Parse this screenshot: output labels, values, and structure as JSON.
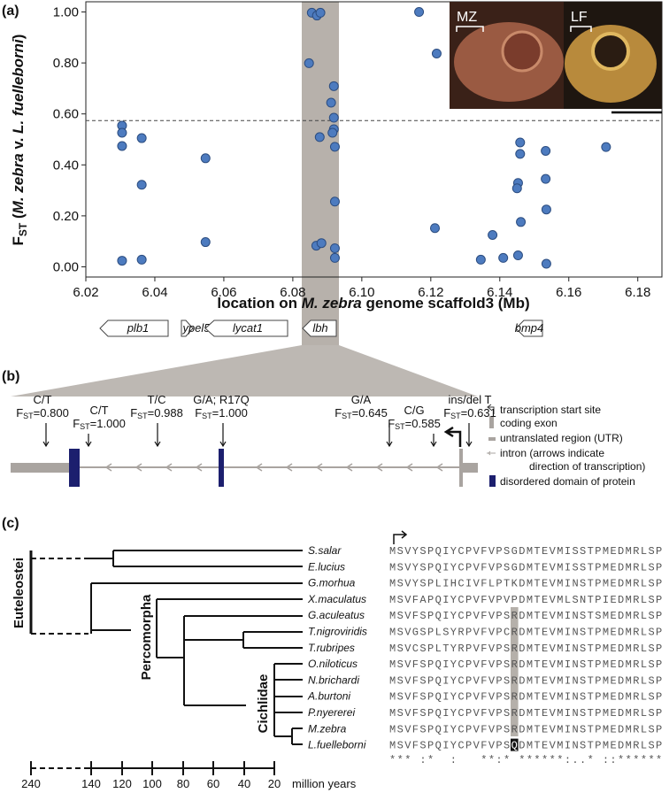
{
  "panel_labels": [
    "(a)",
    "(b)",
    "(c)"
  ],
  "chart_data": {
    "type": "scatter",
    "x": [
      6.0305,
      6.0305,
      6.0305,
      6.0305,
      6.0362,
      6.0362,
      6.0362,
      6.0547,
      6.0547,
      6.0855,
      6.087,
      6.088,
      6.0847,
      6.0911,
      6.0919,
      6.0919,
      6.0919,
      6.0915,
      6.0922,
      6.0878,
      6.0922,
      6.0868,
      6.0883,
      6.0922,
      6.0922,
      6.1166,
      6.1217,
      6.1212,
      6.1345,
      6.1379,
      6.141,
      6.1459,
      6.1459,
      6.1453,
      6.145,
      6.1461,
      6.1453,
      6.1533,
      6.1533,
      6.1535,
      6.1535,
      6.1708
    ],
    "y": [
      0.554,
      0.526,
      0.474,
      0.024,
      0.505,
      0.322,
      0.028,
      0.426,
      0.097,
      0.997,
      0.986,
      0.997,
      0.799,
      0.644,
      0.709,
      0.585,
      0.54,
      0.526,
      0.471,
      0.509,
      0.256,
      0.083,
      0.093,
      0.073,
      0.035,
      1.0,
      0.837,
      0.152,
      0.028,
      0.125,
      0.035,
      0.488,
      0.443,
      0.329,
      0.308,
      0.176,
      0.045,
      0.455,
      0.345,
      0.225,
      0.012,
      0.47
    ],
    "color": "#4d7bbf",
    "xlim": [
      6.02,
      6.187
    ],
    "ylim": [
      -0.04,
      1.04
    ],
    "xticks": [
      6.02,
      6.04,
      6.06,
      6.08,
      {
        "value": 6.1,
        "label": "6.10"
      },
      6.12,
      6.14,
      6.16,
      6.18
    ],
    "yticks": [
      {
        "value": 0,
        "label": "0.00"
      },
      {
        "value": 0.2,
        "label": "0.20"
      },
      {
        "value": 0.4,
        "label": "0.40"
      },
      {
        "value": 0.6,
        "label": "0.60"
      },
      {
        "value": 0.8,
        "label": "0.80"
      },
      {
        "value": 1,
        "label": "1.00"
      }
    ],
    "reference_line": 0.574,
    "x_label": [
      "location on ",
      "M. zebra",
      " genome scaffold3 (Mb)"
    ],
    "y_label": [
      "F",
      "ST",
      " (",
      "M. zebra",
      " v. ",
      "L. fuelleborni",
      ")"
    ]
  },
  "panel_a": {
    "genes": [
      "plb1",
      "ypel5",
      "lycat1",
      "lbh",
      "bmp4"
    ],
    "photo_labels": [
      "MZ",
      "LF"
    ]
  },
  "panel_b": {
    "fst_symbol": {
      "main": "F",
      "sub": "ST"
    },
    "variants": [
      {
        "change": "C/T",
        "fst": "=0.800"
      },
      {
        "change": "C/T",
        "fst": "=1.000"
      },
      {
        "change": "T/C",
        "fst": "=0.988"
      },
      {
        "change": "G/A; R17Q",
        "fst": "=1.000"
      },
      {
        "change": "G/A",
        "fst": "=0.645"
      },
      {
        "change": "C/G",
        "fst": "=0.585"
      },
      {
        "change": "ins/del T",
        "fst": "=0.631"
      }
    ],
    "legend": [
      "transcription start site",
      "coding exon",
      "untranslated region (UTR)",
      "intron (arrows indicate",
      "direction of transcription)",
      "disordered domain of protein"
    ]
  },
  "panel_c": {
    "clades": [
      "Euteleostei",
      "Percomorpha",
      "Cichlidae"
    ],
    "rows": [
      {
        "species": "S.salar",
        "pre": "MSVYSPQIYCPVFVPS",
        "site": "G",
        "post": "DMTEVMISSTPMEDMRLSP"
      },
      {
        "species": "E.lucius",
        "pre": "MSVYSPQIYCPVFVPS",
        "site": "G",
        "post": "DMTEVMISSTPMEDMRLSP"
      },
      {
        "species": "G.morhua",
        "pre": "MSVYSPLIHCIVFLPT",
        "site": "K",
        "post": "DMTEVMINSTPMEDMRLSP"
      },
      {
        "species": "X.maculatus",
        "pre": "MSVFAPQIYCPVFVPV",
        "site": "P",
        "post": "DMTEVMLSNTPIEDMRLSP"
      },
      {
        "species": "G.aculeatus",
        "pre": "MSVFSPQIYCPVFVPS",
        "site": "R",
        "post": "DMTEVMINSTSMEDMRLSP"
      },
      {
        "species": "T.nigroviridis",
        "pre": "MSVGSPLSYRPVFVPC",
        "site": "R",
        "post": "DMTEVMINSTPMEDMRLSP"
      },
      {
        "species": "T.rubripes",
        "pre": "MSVCSPLTYRPVFVPS",
        "site": "R",
        "post": "DMTEVMINSTPMEDMRLSP"
      },
      {
        "species": "O.niloticus",
        "pre": "MSVFSPQIYCPVFVPS",
        "site": "R",
        "post": "DMTEVMINSTPMEDMRLSP"
      },
      {
        "species": "N.brichardi",
        "pre": "MSVFSPQIYCPVFVPS",
        "site": "R",
        "post": "DMTEVMINSTPMEDMRLSP"
      },
      {
        "species": "A.burtoni",
        "pre": "MSVFSPQIYCPVFVPS",
        "site": "R",
        "post": "DMTEVMINSTPMEDMRLSP"
      },
      {
        "species": "P.nyererei",
        "pre": "MSVFSPQIYCPVFVPS",
        "site": "R",
        "post": "DMTEVMINSTPMEDMRLSP"
      },
      {
        "species": "M.zebra",
        "pre": "MSVFSPQIYCPVFVPS",
        "site": "R",
        "post": "DMTEVMINSTPMEDMRLSP"
      },
      {
        "species": "L.fuelleborni",
        "pre": "MSVFSPQIYCPVFVPS",
        "site": "Q",
        "post": "DMTEVMINSTPMEDMRLSP"
      }
    ],
    "conservation": "*** :*  :   **:* ******:..* ::******",
    "time_ticks": [
      240,
      140,
      120,
      100,
      80,
      60,
      40,
      20
    ],
    "time_unit": "million years"
  }
}
